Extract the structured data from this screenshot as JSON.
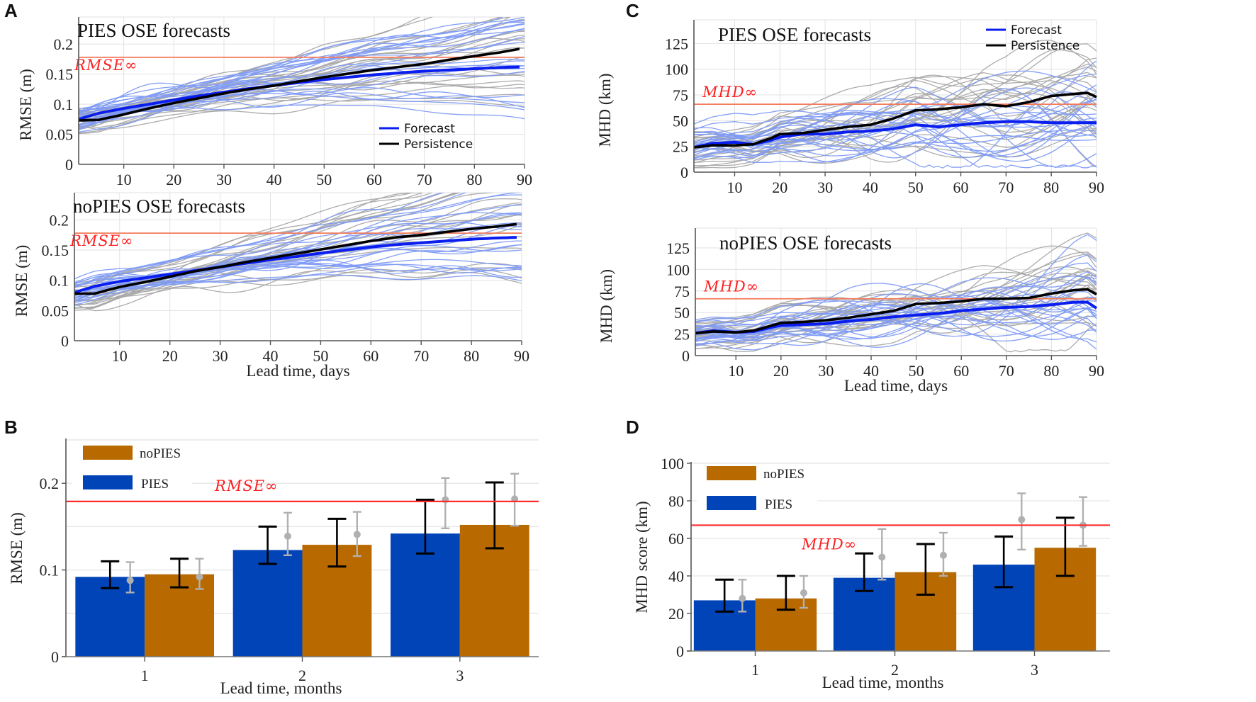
{
  "figure": {
    "panels": [
      "A",
      "B",
      "C",
      "D"
    ],
    "colors": {
      "forecast_mean": "#0a1eee",
      "forecast_members": "#7d9af5",
      "persistence_mean": "#000000",
      "persistence_members": "#a8a8a8",
      "saturation_line_lines": "#f47a5a",
      "saturation_line_bars": "#ff2a2a",
      "pies_bar": "#0044b8",
      "nopies_bar": "#b86a00",
      "persistence_error": "#b0b0b0"
    }
  },
  "chart_data": [
    {
      "id": "A-top",
      "panel": "A",
      "type": "line",
      "title": "PIES OSE forecasts",
      "xlabel": "",
      "ylabel": "RMSE (m)",
      "xlim": [
        1,
        90
      ],
      "ylim": [
        0,
        0.245
      ],
      "xticks": [
        10,
        20,
        30,
        40,
        50,
        60,
        70,
        80,
        90
      ],
      "yticks": [
        0,
        0.05,
        0.1,
        0.15,
        0.2
      ],
      "ytick_labels": [
        "0",
        "0.05",
        "0.1",
        "0.15",
        "0.2"
      ],
      "grid": true,
      "legend": {
        "position": "bottom-right",
        "entries": [
          "Forecast",
          "Persistence"
        ]
      },
      "reference_line": {
        "label": "RMSE∞",
        "value": 0.178
      },
      "x": [
        1,
        5,
        10,
        15,
        20,
        25,
        30,
        35,
        40,
        45,
        50,
        55,
        60,
        65,
        70,
        75,
        80,
        85,
        89
      ],
      "series": [
        {
          "name": "Forecast",
          "values": [
            0.075,
            0.085,
            0.093,
            0.1,
            0.107,
            0.114,
            0.12,
            0.126,
            0.131,
            0.136,
            0.141,
            0.145,
            0.149,
            0.152,
            0.155,
            0.157,
            0.159,
            0.161,
            0.162
          ]
        },
        {
          "name": "Persistence",
          "values": [
            0.073,
            0.074,
            0.083,
            0.093,
            0.102,
            0.11,
            0.118,
            0.125,
            0.131,
            0.138,
            0.145,
            0.151,
            0.157,
            0.162,
            0.167,
            0.174,
            0.18,
            0.186,
            0.192
          ]
        }
      ],
      "ensemble_range": {
        "forecast": [
          0.06,
          0.245
        ],
        "persistence": [
          0.055,
          0.235
        ]
      }
    },
    {
      "id": "A-bottom",
      "panel": "A",
      "type": "line",
      "title": "noPIES OSE forecasts",
      "xlabel": "Lead time, days",
      "ylabel": "RMSE (m)",
      "xlim": [
        1,
        90
      ],
      "ylim": [
        0,
        0.245
      ],
      "xticks": [
        10,
        20,
        30,
        40,
        50,
        60,
        70,
        80,
        90
      ],
      "yticks": [
        0,
        0.05,
        0.1,
        0.15,
        0.2
      ],
      "ytick_labels": [
        "0",
        "0.05",
        "0.1",
        "0.15",
        "0.2"
      ],
      "grid": true,
      "reference_line": {
        "label": "RMSE∞",
        "value": 0.178
      },
      "x": [
        1,
        5,
        10,
        15,
        20,
        25,
        30,
        35,
        40,
        45,
        50,
        55,
        60,
        65,
        70,
        75,
        80,
        85,
        89
      ],
      "series": [
        {
          "name": "Forecast",
          "values": [
            0.08,
            0.09,
            0.098,
            0.104,
            0.11,
            0.116,
            0.122,
            0.128,
            0.134,
            0.139,
            0.145,
            0.15,
            0.155,
            0.159,
            0.162,
            0.165,
            0.168,
            0.17,
            0.171
          ]
        },
        {
          "name": "Persistence",
          "values": [
            0.078,
            0.078,
            0.089,
            0.097,
            0.106,
            0.115,
            0.122,
            0.13,
            0.137,
            0.144,
            0.151,
            0.158,
            0.165,
            0.171,
            0.175,
            0.18,
            0.185,
            0.189,
            0.193
          ]
        }
      ],
      "ensemble_range": {
        "forecast": [
          0.08,
          0.245
        ],
        "persistence": [
          0.055,
          0.24
        ]
      }
    },
    {
      "id": "B",
      "panel": "B",
      "type": "bar",
      "title": "",
      "xlabel": "Lead time, months",
      "ylabel": "RMSE (m)",
      "ylim": [
        0,
        0.25
      ],
      "yticks": [
        0,
        0.1,
        0.2
      ],
      "ytick_labels": [
        "0",
        "0.1",
        "0.2"
      ],
      "minor_grid": [
        0.05,
        0.15,
        0.25
      ],
      "grid": true,
      "legend": {
        "position": "top-left",
        "entries": [
          "noPIES",
          "PIES"
        ]
      },
      "reference_line": {
        "label": "RMSE∞",
        "value": 0.179
      },
      "categories": [
        "1",
        "2",
        "3"
      ],
      "series": [
        {
          "name": "PIES",
          "values": [
            0.092,
            0.123,
            0.142
          ],
          "error_low": [
            0.079,
            0.107,
            0.119
          ],
          "error_high": [
            0.11,
            0.15,
            0.181
          ]
        },
        {
          "name": "noPIES",
          "values": [
            0.095,
            0.129,
            0.152
          ],
          "error_low": [
            0.08,
            0.104,
            0.125
          ],
          "error_high": [
            0.113,
            0.159,
            0.201
          ]
        }
      ],
      "persistence": [
        {
          "name": "PIES persistence",
          "values": [
            0.088,
            0.139,
            0.181
          ],
          "error_low": [
            0.074,
            0.117,
            0.148
          ],
          "error_high": [
            0.109,
            0.166,
            0.206
          ]
        },
        {
          "name": "noPIES persistence",
          "values": [
            0.092,
            0.141,
            0.182
          ],
          "error_low": [
            0.078,
            0.116,
            0.151
          ],
          "error_high": [
            0.113,
            0.167,
            0.211
          ]
        }
      ]
    },
    {
      "id": "C-top",
      "panel": "C",
      "type": "line",
      "title": "PIES OSE forecasts",
      "xlabel": "",
      "ylabel": "MHD (km)",
      "xlim": [
        1,
        90
      ],
      "ylim": [
        0,
        148
      ],
      "xticks": [
        10,
        20,
        30,
        40,
        50,
        60,
        70,
        80,
        90
      ],
      "yticks": [
        0,
        25,
        50,
        75,
        100,
        125
      ],
      "ytick_labels": [
        "0",
        "25",
        "50",
        "75",
        "100",
        "125"
      ],
      "grid": true,
      "legend": {
        "position": "top-right",
        "entries": [
          "Forecast",
          "Persistence"
        ]
      },
      "reference_line": {
        "label": "MHD∞",
        "value": 66
      },
      "x": [
        1,
        5,
        10,
        14,
        18,
        20,
        25,
        30,
        35,
        40,
        45,
        50,
        55,
        60,
        65,
        70,
        75,
        80,
        85,
        88,
        90
      ],
      "series": [
        {
          "name": "Forecast",
          "values": [
            24,
            28,
            29,
            27,
            31,
            34,
            37,
            37,
            39,
            40,
            42,
            46,
            44,
            46,
            48,
            49,
            49,
            48,
            48,
            48,
            48
          ]
        },
        {
          "name": "Persistence",
          "values": [
            24,
            26,
            26,
            27,
            33,
            37,
            38,
            41,
            44,
            46,
            52,
            60,
            61,
            63,
            66,
            64,
            68,
            74,
            76,
            77,
            73
          ]
        }
      ],
      "ensemble_range": {
        "forecast": [
          10,
          122
        ],
        "persistence": [
          10,
          148
        ]
      }
    },
    {
      "id": "C-bottom",
      "panel": "C",
      "type": "line",
      "title": "noPIES OSE forecasts",
      "xlabel": "Lead time, days",
      "ylabel": "MHD (km)",
      "xlim": [
        1,
        90
      ],
      "ylim": [
        0,
        148
      ],
      "xticks": [
        10,
        20,
        30,
        40,
        50,
        60,
        70,
        80,
        90
      ],
      "yticks": [
        0,
        25,
        50,
        75,
        100,
        125
      ],
      "ytick_labels": [
        "0",
        "25",
        "50",
        "75",
        "100",
        "125"
      ],
      "grid": true,
      "reference_line": {
        "label": "MHD∞",
        "value": 66
      },
      "x": [
        1,
        5,
        10,
        14,
        18,
        20,
        25,
        30,
        35,
        40,
        45,
        50,
        55,
        60,
        65,
        70,
        75,
        80,
        85,
        88,
        90
      ],
      "series": [
        {
          "name": "Forecast",
          "values": [
            26,
            29,
            27,
            28,
            33,
            35,
            36,
            37,
            40,
            42,
            45,
            47,
            49,
            52,
            54,
            56,
            57,
            59,
            62,
            62,
            55
          ]
        },
        {
          "name": "Persistence",
          "values": [
            26,
            28,
            27,
            29,
            35,
            38,
            39,
            41,
            44,
            48,
            52,
            60,
            61,
            63,
            66,
            66,
            67,
            72,
            76,
            77,
            71
          ]
        }
      ],
      "ensemble_range": {
        "forecast": [
          5,
          148
        ],
        "persistence": [
          10,
          135
        ]
      }
    },
    {
      "id": "D",
      "panel": "D",
      "type": "bar",
      "title": "",
      "xlabel": "Lead time, months",
      "ylabel": "MHD score (km)",
      "ylim": [
        0,
        100
      ],
      "yticks": [
        0,
        20,
        40,
        60,
        80,
        100
      ],
      "ytick_labels": [
        "0",
        "20",
        "40",
        "60",
        "80",
        "100"
      ],
      "grid": true,
      "legend": {
        "position": "top-left",
        "entries": [
          "noPIES",
          "PIES"
        ]
      },
      "reference_line": {
        "label": "MHD∞",
        "value": 67
      },
      "categories": [
        "1",
        "2",
        "3"
      ],
      "series": [
        {
          "name": "PIES",
          "values": [
            27,
            39,
            46
          ],
          "error_low": [
            21,
            32,
            34
          ],
          "error_high": [
            38,
            52,
            61
          ]
        },
        {
          "name": "noPIES",
          "values": [
            28,
            42,
            55
          ],
          "error_low": [
            22,
            30,
            40
          ],
          "error_high": [
            40,
            57,
            71
          ]
        }
      ],
      "persistence": [
        {
          "name": "PIES persistence",
          "values": [
            28,
            50,
            70
          ],
          "error_low": [
            21,
            38,
            54
          ],
          "error_high": [
            38,
            65,
            84
          ]
        },
        {
          "name": "noPIES persistence",
          "values": [
            31,
            51,
            67
          ],
          "error_low": [
            23,
            40,
            56
          ],
          "error_high": [
            40,
            63,
            82
          ]
        }
      ]
    }
  ]
}
